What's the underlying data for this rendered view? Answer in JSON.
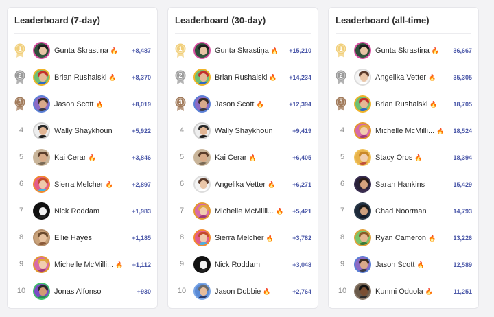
{
  "colors": {
    "score": "#4a57a8",
    "gold": "#f1cf7a",
    "silver": "#9a9a9a",
    "bronze": "#a17a5a",
    "fire": "#f26b1d"
  },
  "boards": [
    {
      "title": "Leaderboard (7-day)",
      "rows": [
        {
          "rank": "1",
          "medal": "gold",
          "name": "Gunta Skrastiņa",
          "fire": true,
          "score": "+8,487",
          "avatar": "gunta"
        },
        {
          "rank": "2",
          "medal": "silver",
          "name": "Brian Rushalski",
          "fire": true,
          "score": "+8,370",
          "avatar": "brian"
        },
        {
          "rank": "3",
          "medal": "bronze",
          "name": "Jason Scott",
          "fire": true,
          "score": "+8,019",
          "avatar": "jasonscott"
        },
        {
          "rank": "4",
          "medal": "",
          "name": "Wally Shaykhoun",
          "fire": false,
          "score": "+5,922",
          "avatar": "wally"
        },
        {
          "rank": "5",
          "medal": "",
          "name": "Kai Cerar",
          "fire": true,
          "score": "+3,846",
          "avatar": "kai"
        },
        {
          "rank": "6",
          "medal": "",
          "name": "Sierra Melcher",
          "fire": true,
          "score": "+2,897",
          "avatar": "sierra"
        },
        {
          "rank": "7",
          "medal": "",
          "name": "Nick Roddam",
          "fire": false,
          "score": "+1,983",
          "avatar": "nick"
        },
        {
          "rank": "8",
          "medal": "",
          "name": "Ellie Hayes",
          "fire": false,
          "score": "+1,185",
          "avatar": "ellie"
        },
        {
          "rank": "9",
          "medal": "",
          "name": "Michelle McMilli...",
          "fire": true,
          "score": "+1,112",
          "avatar": "michelle"
        },
        {
          "rank": "10",
          "medal": "",
          "name": "Jonas Alfonso",
          "fire": false,
          "score": "+930",
          "avatar": "jonas"
        }
      ]
    },
    {
      "title": "Leaderboard (30-day)",
      "rows": [
        {
          "rank": "1",
          "medal": "gold",
          "name": "Gunta Skrastiņa",
          "fire": true,
          "score": "+15,210",
          "avatar": "gunta"
        },
        {
          "rank": "2",
          "medal": "silver",
          "name": "Brian Rushalski",
          "fire": true,
          "score": "+14,234",
          "avatar": "brian"
        },
        {
          "rank": "3",
          "medal": "bronze",
          "name": "Jason Scott",
          "fire": true,
          "score": "+12,394",
          "avatar": "jasonscott"
        },
        {
          "rank": "4",
          "medal": "",
          "name": "Wally Shaykhoun",
          "fire": false,
          "score": "+9,419",
          "avatar": "wally"
        },
        {
          "rank": "5",
          "medal": "",
          "name": "Kai Cerar",
          "fire": true,
          "score": "+6,405",
          "avatar": "kai"
        },
        {
          "rank": "6",
          "medal": "",
          "name": "Angelika Vetter",
          "fire": true,
          "score": "+6,271",
          "avatar": "angelika"
        },
        {
          "rank": "7",
          "medal": "",
          "name": "Michelle McMilli...",
          "fire": true,
          "score": "+5,421",
          "avatar": "michelle"
        },
        {
          "rank": "8",
          "medal": "",
          "name": "Sierra Melcher",
          "fire": true,
          "score": "+3,782",
          "avatar": "sierra"
        },
        {
          "rank": "9",
          "medal": "",
          "name": "Nick Roddam",
          "fire": false,
          "score": "+3,048",
          "avatar": "nick"
        },
        {
          "rank": "10",
          "medal": "",
          "name": "Jason Dobbie",
          "fire": true,
          "score": "+2,764",
          "avatar": "jasondobbie"
        }
      ]
    },
    {
      "title": "Leaderboard (all-time)",
      "rows": [
        {
          "rank": "1",
          "medal": "gold",
          "name": "Gunta Skrastiņa",
          "fire": true,
          "score": "36,667",
          "avatar": "gunta"
        },
        {
          "rank": "2",
          "medal": "silver",
          "name": "Angelika Vetter",
          "fire": true,
          "score": "35,305",
          "avatar": "angelika"
        },
        {
          "rank": "3",
          "medal": "bronze",
          "name": "Brian Rushalski",
          "fire": true,
          "score": "18,705",
          "avatar": "brian"
        },
        {
          "rank": "4",
          "medal": "",
          "name": "Michelle McMilli...",
          "fire": true,
          "score": "18,524",
          "avatar": "michelle"
        },
        {
          "rank": "5",
          "medal": "",
          "name": "Stacy Oros",
          "fire": true,
          "score": "18,394",
          "avatar": "stacy"
        },
        {
          "rank": "6",
          "medal": "",
          "name": "Sarah Hankins",
          "fire": false,
          "score": "15,429",
          "avatar": "sarah"
        },
        {
          "rank": "7",
          "medal": "",
          "name": "Chad Noorman",
          "fire": false,
          "score": "14,793",
          "avatar": "chad"
        },
        {
          "rank": "8",
          "medal": "",
          "name": "Ryan Cameron",
          "fire": true,
          "score": "13,226",
          "avatar": "ryan"
        },
        {
          "rank": "9",
          "medal": "",
          "name": "Jason Scott",
          "fire": true,
          "score": "12,589",
          "avatar": "jasonscott"
        },
        {
          "rank": "10",
          "medal": "",
          "name": "Kunmi Oduola",
          "fire": true,
          "score": "11,251",
          "avatar": "kunmi"
        }
      ]
    }
  ]
}
